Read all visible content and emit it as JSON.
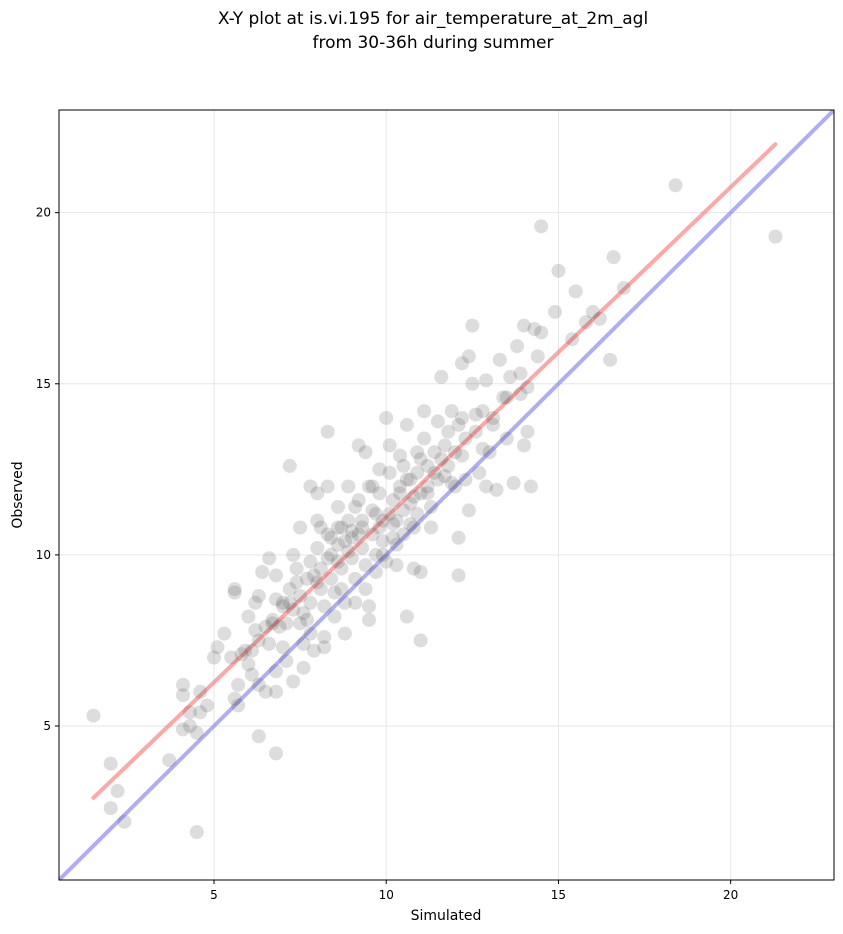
{
  "chart_data": {
    "type": "scatter",
    "title_line1": "X-Y plot at is.vi.195 for air_temperature_at_2m_agl",
    "title_line2": "from 30-36h during summer",
    "xlabel": "Simulated",
    "ylabel": "Observed",
    "xlim": [
      0.5,
      23
    ],
    "ylim": [
      0.5,
      23
    ],
    "xticks": [
      5,
      10,
      15,
      20
    ],
    "yticks": [
      5,
      10,
      15,
      20
    ],
    "grid": true,
    "colors": {
      "points": "#555555",
      "fit_line": "#ff6b6b",
      "identity_line": "#6b6bee"
    },
    "fit_line": {
      "x": [
        1.5,
        21.3
      ],
      "y": [
        2.9,
        22.0
      ]
    },
    "identity_line": {
      "x": [
        0.5,
        23
      ],
      "y": [
        0.5,
        23
      ]
    },
    "points": [
      [
        1.5,
        5.3
      ],
      [
        2.0,
        3.9
      ],
      [
        2.2,
        3.1
      ],
      [
        2.0,
        2.6
      ],
      [
        2.4,
        2.2
      ],
      [
        3.7,
        4.0
      ],
      [
        4.1,
        6.2
      ],
      [
        4.1,
        5.9
      ],
      [
        4.1,
        4.9
      ],
      [
        4.3,
        5.0
      ],
      [
        4.3,
        5.4
      ],
      [
        4.6,
        6.0
      ],
      [
        4.8,
        5.6
      ],
      [
        4.6,
        5.4
      ],
      [
        4.5,
        4.8
      ],
      [
        4.5,
        1.9
      ],
      [
        5.0,
        7.0
      ],
      [
        5.1,
        7.3
      ],
      [
        5.3,
        7.7
      ],
      [
        5.6,
        9.0
      ],
      [
        5.6,
        8.9
      ],
      [
        5.8,
        7.1
      ],
      [
        5.7,
        6.2
      ],
      [
        5.6,
        5.8
      ],
      [
        5.7,
        5.6
      ],
      [
        6.0,
        8.2
      ],
      [
        6.2,
        8.6
      ],
      [
        6.4,
        9.5
      ],
      [
        6.3,
        8.8
      ],
      [
        6.2,
        7.8
      ],
      [
        6.3,
        7.5
      ],
      [
        6.1,
        7.2
      ],
      [
        6.0,
        6.8
      ],
      [
        6.3,
        6.2
      ],
      [
        6.5,
        6.0
      ],
      [
        6.3,
        4.7
      ],
      [
        6.6,
        9.9
      ],
      [
        6.8,
        9.4
      ],
      [
        6.8,
        8.7
      ],
      [
        6.7,
        8.0
      ],
      [
        6.6,
        7.4
      ],
      [
        6.8,
        6.6
      ],
      [
        6.8,
        6.0
      ],
      [
        6.8,
        4.2
      ],
      [
        7.0,
        8.5
      ],
      [
        7.2,
        9.0
      ],
      [
        7.3,
        10.0
      ],
      [
        7.2,
        8.6
      ],
      [
        7.1,
        8.0
      ],
      [
        7.0,
        7.3
      ],
      [
        7.1,
        6.9
      ],
      [
        7.3,
        6.3
      ],
      [
        7.2,
        12.6
      ],
      [
        7.4,
        9.6
      ],
      [
        7.5,
        8.8
      ],
      [
        7.5,
        8.0
      ],
      [
        7.6,
        7.4
      ],
      [
        7.5,
        10.8
      ],
      [
        7.6,
        6.7
      ],
      [
        7.8,
        12.0
      ],
      [
        7.8,
        9.8
      ],
      [
        7.9,
        9.4
      ],
      [
        7.8,
        8.6
      ],
      [
        7.7,
        8.1
      ],
      [
        7.8,
        7.7
      ],
      [
        7.9,
        7.2
      ],
      [
        8.0,
        11.8
      ],
      [
        8.0,
        11.0
      ],
      [
        8.0,
        10.2
      ],
      [
        8.1,
        9.6
      ],
      [
        8.1,
        9.0
      ],
      [
        8.2,
        8.5
      ],
      [
        8.2,
        7.6
      ],
      [
        8.2,
        7.3
      ],
      [
        8.3,
        13.6
      ],
      [
        8.3,
        12.0
      ],
      [
        8.3,
        10.6
      ],
      [
        8.4,
        10.0
      ],
      [
        8.4,
        9.3
      ],
      [
        8.5,
        8.9
      ],
      [
        8.5,
        8.2
      ],
      [
        8.6,
        11.4
      ],
      [
        8.6,
        10.8
      ],
      [
        8.6,
        10.3
      ],
      [
        8.7,
        9.6
      ],
      [
        8.7,
        9.0
      ],
      [
        8.8,
        8.6
      ],
      [
        8.8,
        7.7
      ],
      [
        8.9,
        12.0
      ],
      [
        8.9,
        11.0
      ],
      [
        9.0,
        10.5
      ],
      [
        9.0,
        9.9
      ],
      [
        9.1,
        9.3
      ],
      [
        9.1,
        8.6
      ],
      [
        9.2,
        13.2
      ],
      [
        9.2,
        11.6
      ],
      [
        9.3,
        10.8
      ],
      [
        9.3,
        10.2
      ],
      [
        9.4,
        9.7
      ],
      [
        9.4,
        9.0
      ],
      [
        9.5,
        8.5
      ],
      [
        9.5,
        8.1
      ],
      [
        9.4,
        13.0
      ],
      [
        9.5,
        12.0
      ],
      [
        9.6,
        11.3
      ],
      [
        9.6,
        10.6
      ],
      [
        9.7,
        10.0
      ],
      [
        9.7,
        9.5
      ],
      [
        9.8,
        12.5
      ],
      [
        9.8,
        11.8
      ],
      [
        9.9,
        11.0
      ],
      [
        9.9,
        10.4
      ],
      [
        10.0,
        9.8
      ],
      [
        10.0,
        14.0
      ],
      [
        10.1,
        13.2
      ],
      [
        10.1,
        12.4
      ],
      [
        10.2,
        11.6
      ],
      [
        10.2,
        10.9
      ],
      [
        10.3,
        10.3
      ],
      [
        10.3,
        9.7
      ],
      [
        10.4,
        12.9
      ],
      [
        10.4,
        12.0
      ],
      [
        10.5,
        11.3
      ],
      [
        10.5,
        10.6
      ],
      [
        10.6,
        8.2
      ],
      [
        10.6,
        13.8
      ],
      [
        10.7,
        12.2
      ],
      [
        10.7,
        11.5
      ],
      [
        10.8,
        10.8
      ],
      [
        10.8,
        9.6
      ],
      [
        10.9,
        13.0
      ],
      [
        10.9,
        12.4
      ],
      [
        11.0,
        11.8
      ],
      [
        11.0,
        9.5
      ],
      [
        11.0,
        7.5
      ],
      [
        11.1,
        14.2
      ],
      [
        11.1,
        13.4
      ],
      [
        11.2,
        12.6
      ],
      [
        11.2,
        12.0
      ],
      [
        11.3,
        11.4
      ],
      [
        11.3,
        10.8
      ],
      [
        11.4,
        13.0
      ],
      [
        11.5,
        12.2
      ],
      [
        11.5,
        13.9
      ],
      [
        11.6,
        15.2
      ],
      [
        11.6,
        12.8
      ],
      [
        11.7,
        12.3
      ],
      [
        11.8,
        13.6
      ],
      [
        11.9,
        14.2
      ],
      [
        12.0,
        13.0
      ],
      [
        12.0,
        12.0
      ],
      [
        12.1,
        10.5
      ],
      [
        12.1,
        9.4
      ],
      [
        12.2,
        15.6
      ],
      [
        12.2,
        14.0
      ],
      [
        12.3,
        13.4
      ],
      [
        12.3,
        12.2
      ],
      [
        12.4,
        15.8
      ],
      [
        12.4,
        11.3
      ],
      [
        12.5,
        16.7
      ],
      [
        12.5,
        15.0
      ],
      [
        12.6,
        13.6
      ],
      [
        12.7,
        12.4
      ],
      [
        12.8,
        14.2
      ],
      [
        12.9,
        15.1
      ],
      [
        12.9,
        12.0
      ],
      [
        13.0,
        13.0
      ],
      [
        13.1,
        13.8
      ],
      [
        13.2,
        11.9
      ],
      [
        13.3,
        15.7
      ],
      [
        13.4,
        14.6
      ],
      [
        13.5,
        13.4
      ],
      [
        13.6,
        15.2
      ],
      [
        13.7,
        12.1
      ],
      [
        13.8,
        16.1
      ],
      [
        13.9,
        15.3
      ],
      [
        14.0,
        16.7
      ],
      [
        14.0,
        13.2
      ],
      [
        14.1,
        14.9
      ],
      [
        14.2,
        12.0
      ],
      [
        14.3,
        16.6
      ],
      [
        14.4,
        15.8
      ],
      [
        14.5,
        16.5
      ],
      [
        14.5,
        19.6
      ],
      [
        14.9,
        17.1
      ],
      [
        15.0,
        18.3
      ],
      [
        15.4,
        16.3
      ],
      [
        15.5,
        17.7
      ],
      [
        15.8,
        16.8
      ],
      [
        16.0,
        17.1
      ],
      [
        16.2,
        16.9
      ],
      [
        16.5,
        15.7
      ],
      [
        16.6,
        18.7
      ],
      [
        16.9,
        17.8
      ],
      [
        18.4,
        20.8
      ],
      [
        21.3,
        19.3
      ],
      [
        7.6,
        8.3
      ],
      [
        8.1,
        10.8
      ],
      [
        8.9,
        10.1
      ],
      [
        9.1,
        11.4
      ],
      [
        9.6,
        12.0
      ],
      [
        10.1,
        11.2
      ],
      [
        10.5,
        12.6
      ],
      [
        10.9,
        11.2
      ],
      [
        11.4,
        12.4
      ],
      [
        11.8,
        12.6
      ],
      [
        6.9,
        7.9
      ],
      [
        7.4,
        9.2
      ],
      [
        8.3,
        9.9
      ],
      [
        8.8,
        10.4
      ],
      [
        9.2,
        10.6
      ],
      [
        9.9,
        10.0
      ],
      [
        10.2,
        10.5
      ],
      [
        10.7,
        10.9
      ],
      [
        11.2,
        11.8
      ],
      [
        12.2,
        12.9
      ],
      [
        5.9,
        7.2
      ],
      [
        6.5,
        7.9
      ],
      [
        7.0,
        8.6
      ],
      [
        7.7,
        9.3
      ],
      [
        8.4,
        10.5
      ],
      [
        8.7,
        10.8
      ],
      [
        9.3,
        11.0
      ],
      [
        9.7,
        11.2
      ],
      [
        10.4,
        11.8
      ],
      [
        10.6,
        12.2
      ],
      [
        11.0,
        12.8
      ],
      [
        11.7,
        13.2
      ],
      [
        12.1,
        13.8
      ],
      [
        12.6,
        14.1
      ],
      [
        13.1,
        14.0
      ],
      [
        13.5,
        14.6
      ],
      [
        13.9,
        14.7
      ],
      [
        14.1,
        13.6
      ],
      [
        12.8,
        13.1
      ],
      [
        11.9,
        12.1
      ],
      [
        10.8,
        11.7
      ],
      [
        10.3,
        11.0
      ],
      [
        9.8,
        10.8
      ],
      [
        9.0,
        10.7
      ],
      [
        8.6,
        9.8
      ],
      [
        8.0,
        9.2
      ],
      [
        7.3,
        8.4
      ],
      [
        6.7,
        8.1
      ],
      [
        6.1,
        6.5
      ],
      [
        5.5,
        7.0
      ]
    ]
  }
}
